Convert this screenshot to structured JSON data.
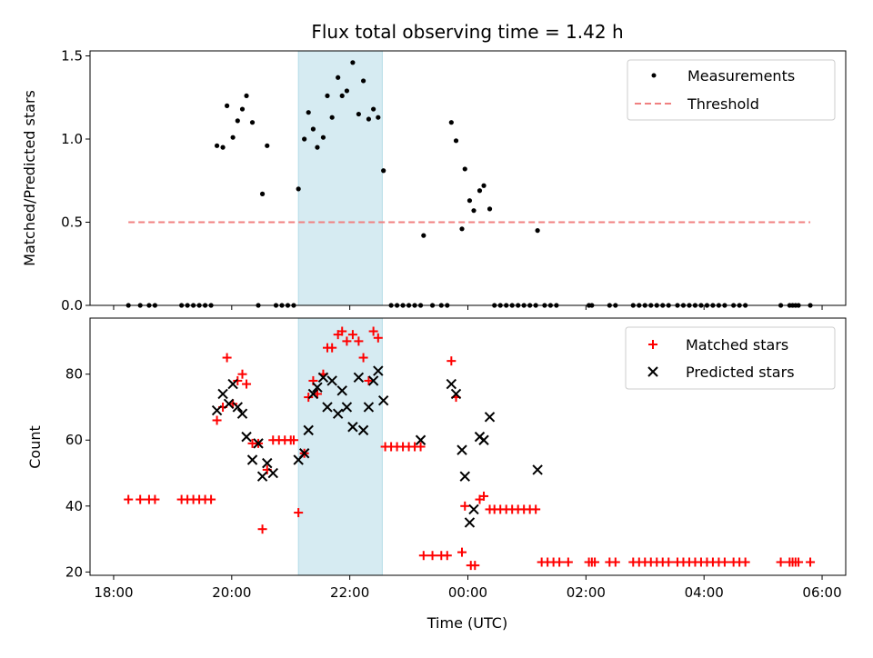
{
  "chart_data": [
    {
      "type": "scatter",
      "title": "Flux total observing time = 1.42 h",
      "xlabel": "",
      "ylabel": "Matched/Predicted stars",
      "xlim": [
        17.6,
        30.4
      ],
      "ylim": [
        0,
        1.53
      ],
      "yticks": [
        0.0,
        0.5,
        1.0,
        1.5
      ],
      "ytick_labels": [
        "0.0",
        "0.5",
        "1.0",
        "1.5"
      ],
      "shaded_x": [
        21.13,
        22.55
      ],
      "shade_color": "#add8e6",
      "legend": {
        "placement": "top-right",
        "entries": [
          "Measurements",
          "Threshold"
        ]
      },
      "series": [
        {
          "name": "Measurements",
          "marker": "dot",
          "color": "#000000",
          "points": [
            [
              18.25,
              0
            ],
            [
              18.45,
              0
            ],
            [
              18.6,
              0
            ],
            [
              18.7,
              0
            ],
            [
              19.15,
              0
            ],
            [
              19.25,
              0
            ],
            [
              19.35,
              0
            ],
            [
              19.45,
              0
            ],
            [
              19.55,
              0
            ],
            [
              19.65,
              0
            ],
            [
              19.75,
              0.96
            ],
            [
              19.85,
              0.95
            ],
            [
              19.92,
              1.2
            ],
            [
              20.02,
              1.01
            ],
            [
              20.1,
              1.11
            ],
            [
              20.18,
              1.18
            ],
            [
              20.25,
              1.26
            ],
            [
              20.35,
              1.1
            ],
            [
              20.45,
              0
            ],
            [
              20.52,
              0.67
            ],
            [
              20.6,
              0.96
            ],
            [
              20.75,
              0
            ],
            [
              20.85,
              0
            ],
            [
              20.95,
              0
            ],
            [
              21.05,
              0
            ],
            [
              21.13,
              0.7
            ],
            [
              21.23,
              1.0
            ],
            [
              21.3,
              1.16
            ],
            [
              21.38,
              1.06
            ],
            [
              21.45,
              0.95
            ],
            [
              21.55,
              1.01
            ],
            [
              21.62,
              1.26
            ],
            [
              21.7,
              1.13
            ],
            [
              21.8,
              1.37
            ],
            [
              21.87,
              1.26
            ],
            [
              21.95,
              1.29
            ],
            [
              22.05,
              1.46
            ],
            [
              22.15,
              1.15
            ],
            [
              22.23,
              1.35
            ],
            [
              22.32,
              1.12
            ],
            [
              22.4,
              1.18
            ],
            [
              22.48,
              1.13
            ],
            [
              22.57,
              0.81
            ],
            [
              22.7,
              0
            ],
            [
              22.8,
              0
            ],
            [
              22.9,
              0
            ],
            [
              23.0,
              0
            ],
            [
              23.1,
              0
            ],
            [
              23.2,
              0
            ],
            [
              23.25,
              0.42
            ],
            [
              23.4,
              0
            ],
            [
              23.55,
              0
            ],
            [
              23.65,
              0
            ],
            [
              23.72,
              1.1
            ],
            [
              23.8,
              0.99
            ],
            [
              23.9,
              0.46
            ],
            [
              23.95,
              0.82
            ],
            [
              24.03,
              0.63
            ],
            [
              24.1,
              0.57
            ],
            [
              24.2,
              0.69
            ],
            [
              24.27,
              0.72
            ],
            [
              24.37,
              0.58
            ],
            [
              24.45,
              0
            ],
            [
              24.55,
              0
            ],
            [
              24.65,
              0
            ],
            [
              24.75,
              0
            ],
            [
              24.85,
              0
            ],
            [
              24.95,
              0
            ],
            [
              25.05,
              0
            ],
            [
              25.15,
              0
            ],
            [
              25.18,
              0.45
            ],
            [
              25.3,
              0
            ],
            [
              25.4,
              0
            ],
            [
              25.5,
              0
            ],
            [
              26.05,
              0
            ],
            [
              26.1,
              0
            ],
            [
              26.4,
              0
            ],
            [
              26.5,
              0
            ],
            [
              26.8,
              0
            ],
            [
              26.9,
              0
            ],
            [
              27.0,
              0
            ],
            [
              27.1,
              0
            ],
            [
              27.2,
              0
            ],
            [
              27.3,
              0
            ],
            [
              27.4,
              0
            ],
            [
              27.55,
              0
            ],
            [
              27.65,
              0
            ],
            [
              27.75,
              0
            ],
            [
              27.85,
              0
            ],
            [
              27.95,
              0
            ],
            [
              28.05,
              0
            ],
            [
              28.15,
              0
            ],
            [
              28.25,
              0
            ],
            [
              28.35,
              0
            ],
            [
              28.5,
              0
            ],
            [
              28.6,
              0
            ],
            [
              28.7,
              0
            ],
            [
              29.3,
              0
            ],
            [
              29.45,
              0
            ],
            [
              29.5,
              0
            ],
            [
              29.55,
              0
            ],
            [
              29.6,
              0
            ],
            [
              29.8,
              0
            ]
          ]
        },
        {
          "name": "Threshold",
          "marker": "dashed-line",
          "color": "#f08080",
          "x": [
            18.25,
            29.8
          ],
          "y": [
            0.5,
            0.5
          ]
        }
      ]
    },
    {
      "type": "scatter",
      "title": "",
      "xlabel": "Time (UTC)",
      "ylabel": "Count",
      "xlim": [
        17.6,
        30.4
      ],
      "ylim": [
        19,
        97
      ],
      "yticks": [
        20,
        40,
        60,
        80
      ],
      "ytick_labels": [
        "20",
        "40",
        "60",
        "80"
      ],
      "xticks": [
        18,
        20,
        22,
        24,
        26,
        28,
        30
      ],
      "xtick_labels": [
        "18:00",
        "20:00",
        "22:00",
        "00:00",
        "02:00",
        "04:00",
        "06:00"
      ],
      "shaded_x": [
        21.13,
        22.55
      ],
      "shade_color": "#add8e6",
      "legend": {
        "placement": "top-right",
        "entries": [
          "Matched stars",
          "Predicted stars"
        ]
      },
      "series": [
        {
          "name": "Matched stars",
          "marker": "plus",
          "color": "#ff0000",
          "points": [
            [
              18.25,
              42
            ],
            [
              18.45,
              42
            ],
            [
              18.6,
              42
            ],
            [
              18.7,
              42
            ],
            [
              19.15,
              42
            ],
            [
              19.25,
              42
            ],
            [
              19.35,
              42
            ],
            [
              19.45,
              42
            ],
            [
              19.55,
              42
            ],
            [
              19.65,
              42
            ],
            [
              19.75,
              66
            ],
            [
              19.85,
              70
            ],
            [
              19.92,
              85
            ],
            [
              20.02,
              71
            ],
            [
              20.1,
              78
            ],
            [
              20.18,
              80
            ],
            [
              20.25,
              77
            ],
            [
              20.35,
              59
            ],
            [
              20.45,
              59
            ],
            [
              20.52,
              33
            ],
            [
              20.6,
              51
            ],
            [
              20.7,
              60
            ],
            [
              20.8,
              60
            ],
            [
              20.9,
              60
            ],
            [
              21.0,
              60
            ],
            [
              21.05,
              60
            ],
            [
              21.13,
              38
            ],
            [
              21.23,
              56
            ],
            [
              21.3,
              73
            ],
            [
              21.38,
              78
            ],
            [
              21.45,
              74
            ],
            [
              21.55,
              80
            ],
            [
              21.62,
              88
            ],
            [
              21.7,
              88
            ],
            [
              21.8,
              92
            ],
            [
              21.87,
              93
            ],
            [
              21.95,
              90
            ],
            [
              22.05,
              92
            ],
            [
              22.15,
              90
            ],
            [
              22.23,
              85
            ],
            [
              22.32,
              78
            ],
            [
              22.4,
              93
            ],
            [
              22.48,
              91
            ],
            [
              22.6,
              58
            ],
            [
              22.7,
              58
            ],
            [
              22.8,
              58
            ],
            [
              22.9,
              58
            ],
            [
              23.0,
              58
            ],
            [
              23.1,
              58
            ],
            [
              23.2,
              58
            ],
            [
              23.25,
              25
            ],
            [
              23.4,
              25
            ],
            [
              23.55,
              25
            ],
            [
              23.65,
              25
            ],
            [
              23.72,
              84
            ],
            [
              23.8,
              73
            ],
            [
              23.9,
              26
            ],
            [
              23.95,
              40
            ],
            [
              24.05,
              22
            ],
            [
              24.12,
              22
            ],
            [
              24.2,
              42
            ],
            [
              24.27,
              43
            ],
            [
              24.37,
              39
            ],
            [
              24.45,
              39
            ],
            [
              24.55,
              39
            ],
            [
              24.65,
              39
            ],
            [
              24.75,
              39
            ],
            [
              24.85,
              39
            ],
            [
              24.95,
              39
            ],
            [
              25.05,
              39
            ],
            [
              25.15,
              39
            ],
            [
              25.25,
              23
            ],
            [
              25.35,
              23
            ],
            [
              25.45,
              23
            ],
            [
              25.55,
              23
            ],
            [
              25.7,
              23
            ],
            [
              26.05,
              23
            ],
            [
              26.1,
              23
            ],
            [
              26.15,
              23
            ],
            [
              26.4,
              23
            ],
            [
              26.5,
              23
            ],
            [
              26.8,
              23
            ],
            [
              26.9,
              23
            ],
            [
              27.0,
              23
            ],
            [
              27.1,
              23
            ],
            [
              27.2,
              23
            ],
            [
              27.3,
              23
            ],
            [
              27.4,
              23
            ],
            [
              27.55,
              23
            ],
            [
              27.65,
              23
            ],
            [
              27.75,
              23
            ],
            [
              27.85,
              23
            ],
            [
              27.95,
              23
            ],
            [
              28.05,
              23
            ],
            [
              28.15,
              23
            ],
            [
              28.25,
              23
            ],
            [
              28.35,
              23
            ],
            [
              28.5,
              23
            ],
            [
              28.6,
              23
            ],
            [
              28.7,
              23
            ],
            [
              29.3,
              23
            ],
            [
              29.45,
              23
            ],
            [
              29.5,
              23
            ],
            [
              29.55,
              23
            ],
            [
              29.6,
              23
            ],
            [
              29.8,
              23
            ]
          ]
        },
        {
          "name": "Predicted stars",
          "marker": "x",
          "color": "#000000",
          "points": [
            [
              19.75,
              69
            ],
            [
              19.85,
              74
            ],
            [
              19.95,
              71
            ],
            [
              20.02,
              77
            ],
            [
              20.1,
              70
            ],
            [
              20.18,
              68
            ],
            [
              20.25,
              61
            ],
            [
              20.35,
              54
            ],
            [
              20.45,
              59
            ],
            [
              20.52,
              49
            ],
            [
              20.6,
              53
            ],
            [
              20.7,
              50
            ],
            [
              21.13,
              54
            ],
            [
              21.23,
              56
            ],
            [
              21.3,
              63
            ],
            [
              21.38,
              74
            ],
            [
              21.45,
              76
            ],
            [
              21.55,
              79
            ],
            [
              21.62,
              70
            ],
            [
              21.7,
              78
            ],
            [
              21.8,
              68
            ],
            [
              21.87,
              75
            ],
            [
              21.95,
              70
            ],
            [
              22.05,
              64
            ],
            [
              22.15,
              79
            ],
            [
              22.23,
              63
            ],
            [
              22.32,
              70
            ],
            [
              22.4,
              78
            ],
            [
              22.48,
              81
            ],
            [
              22.57,
              72
            ],
            [
              23.2,
              60
            ],
            [
              23.72,
              77
            ],
            [
              23.8,
              74
            ],
            [
              23.9,
              57
            ],
            [
              23.95,
              49
            ],
            [
              24.03,
              35
            ],
            [
              24.1,
              39
            ],
            [
              24.2,
              61
            ],
            [
              24.27,
              60
            ],
            [
              24.37,
              67
            ],
            [
              25.18,
              51
            ]
          ]
        }
      ]
    }
  ]
}
